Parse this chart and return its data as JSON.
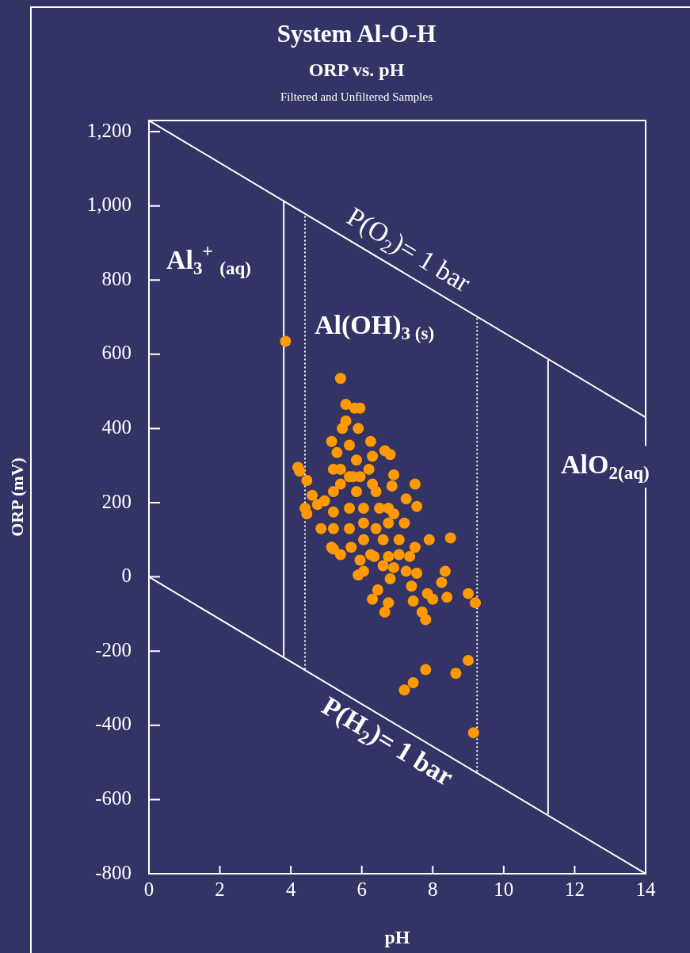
{
  "chart_data": {
    "type": "scatter",
    "title": "System Al-O-H",
    "subtitle": "ORP vs. pH",
    "xlabel": "pH",
    "ylabel": "ORP (mV)",
    "annotations": [
      "Filtered and Unfiltered Samples",
      "Al$_{3}$$^{+}$ $_{(aq)}$",
      "Al(OH)$_{3 (s)}$",
      "AlO$_{2(aq)}$"
    ],
    "xlim": [
      0,
      14
    ],
    "xticks": [
      0,
      2,
      4,
      6,
      8,
      10,
      12,
      14
    ],
    "ylim": [
      -800,
      1230
    ],
    "yticks": [
      -800,
      -600,
      -400,
      -200,
      0,
      200,
      400,
      600,
      800,
      {
        "value": 1000,
        "label": "1,000"
      },
      {
        "value": 1200,
        "label": "1,200"
      }
    ],
    "grid": false,
    "legend": false,
    "marker": "circle",
    "series": [
      {
        "type": "scatter",
        "color": "#ff9900",
        "x": [
          3.85,
          5.4,
          4.2,
          4.25,
          4.45,
          4.4,
          4.45,
          5.15,
          5.55,
          5.55,
          5.45,
          5.8,
          5.95,
          5.65,
          5.9,
          6.25,
          6.3,
          6.65,
          6.8,
          6.9,
          6.85,
          7.5,
          7.55,
          7.25,
          7.2,
          7.05,
          6.9,
          6.6,
          6.25,
          6.05,
          5.7,
          5.4,
          5.15,
          4.85,
          5.2,
          4.95,
          4.75,
          4.6,
          5.2,
          5.65,
          5.95,
          6.3,
          6.5,
          6.05,
          5.65,
          5.85,
          5.4,
          5.4,
          5.85,
          6.2,
          6.4,
          6.75,
          6.75,
          5.2,
          5.65,
          6.05,
          6.4,
          5.2,
          5.3,
          5.75,
          5.2,
          5.95,
          5.9,
          6.05,
          6.35,
          6.75,
          7.05,
          7.35,
          7.5,
          6.6,
          6.9,
          7.25,
          7.55,
          6.8,
          8.35,
          8.25,
          8.4,
          9.0,
          9.2,
          6.3,
          6.45,
          6.75,
          6.65,
          7.4,
          7.45,
          7.85,
          8.0,
          7.7,
          7.8,
          7.2,
          7.45,
          7.8,
          8.65,
          9.0,
          9.15,
          8.5,
          7.9
        ],
        "values": [
          635,
          535,
          295,
          285,
          260,
          185,
          170,
          365,
          465,
          420,
          400,
          455,
          455,
          355,
          400,
          365,
          325,
          340,
          330,
          275,
          245,
          250,
          190,
          210,
          145,
          100,
          170,
          100,
          60,
          100,
          80,
          60,
          80,
          130,
          175,
          205,
          195,
          220,
          230,
          270,
          270,
          250,
          185,
          185,
          185,
          230,
          290,
          250,
          315,
          290,
          230,
          185,
          145,
          130,
          130,
          145,
          130,
          290,
          335,
          270,
          75,
          45,
          5,
          15,
          55,
          55,
          60,
          55,
          80,
          30,
          25,
          15,
          10,
          -5,
          15,
          -15,
          -55,
          -45,
          -70,
          -60,
          -35,
          -70,
          -95,
          -25,
          -65,
          -45,
          -60,
          -95,
          -115,
          -305,
          -285,
          -250,
          -260,
          -225,
          -420,
          105,
          100
        ]
      },
      {
        "name": "P(O$_{2}$)= 1 bar",
        "type": "line",
        "color": "#ffffff",
        "marker": "none",
        "line_style": "solid",
        "x": [
          0,
          14
        ],
        "values": [
          1230,
          430
        ]
      },
      {
        "name": "P(H$_{2}$)= 1 bar",
        "type": "line",
        "color": "#ffffff",
        "marker": "none",
        "line_style": "solid",
        "x": [
          0,
          14
        ],
        "values": [
          0,
          -800
        ]
      },
      {
        "type": "line",
        "color": "#ffffff",
        "marker": "none",
        "line_style": "solid",
        "x": [
          3.8,
          3.8
        ],
        "values": [
          -215,
          1015
        ]
      },
      {
        "type": "line",
        "color": "#ffffff",
        "marker": "none",
        "line_style": "dotted",
        "x": [
          4.4,
          4.4
        ],
        "values": [
          -250,
          975
        ]
      },
      {
        "type": "line",
        "color": "#ffffff",
        "marker": "none",
        "line_style": "dotted",
        "x": [
          9.25,
          9.25
        ],
        "values": [
          -525,
          700
        ]
      },
      {
        "type": "line",
        "color": "#ffffff",
        "marker": "none",
        "line_style": "solid",
        "x": [
          11.25,
          11.25
        ],
        "values": [
          -640,
          585
        ]
      }
    ]
  }
}
